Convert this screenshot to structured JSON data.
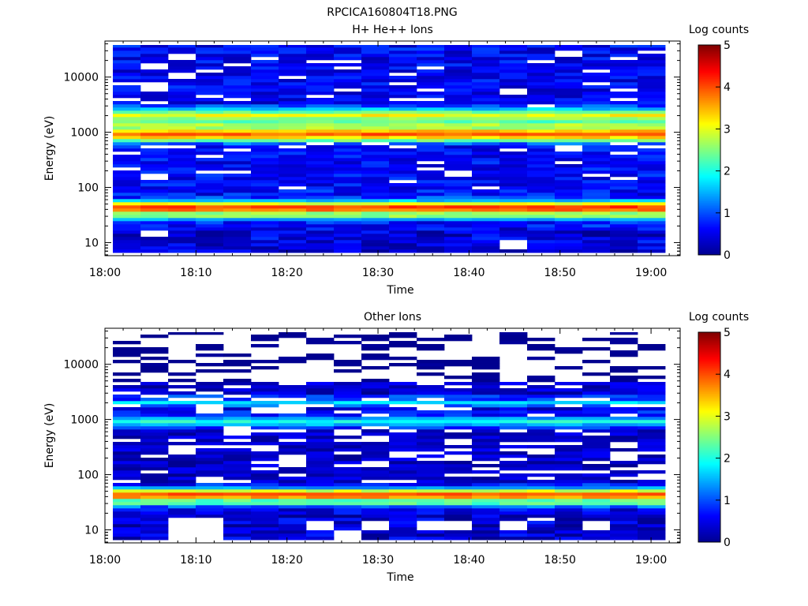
{
  "figure_title": "RPCICA160804T18.PNG",
  "colorbar": {
    "label": "Log counts",
    "ticks": [
      "0",
      "1",
      "2",
      "3",
      "4",
      "5"
    ],
    "range": [
      0,
      5
    ],
    "colormap": [
      "#00008f",
      "#0000ff",
      "#0080ff",
      "#00ffff",
      "#80ff80",
      "#ffff00",
      "#ff8000",
      "#ff0000",
      "#800000"
    ]
  },
  "chart_data": [
    {
      "type": "heatmap",
      "title": "H+ He++ Ions",
      "xlabel": "Time",
      "ylabel": "Energy (eV)",
      "x_tick_labels": [
        "18:00",
        "18:10",
        "18:20",
        "18:30",
        "18:40",
        "18:50",
        "19:00"
      ],
      "x_tick_minutes": [
        0,
        10,
        20,
        30,
        40,
        50,
        60
      ],
      "xlim_minutes": [
        0,
        63.2
      ],
      "y_scale": "log",
      "y_tick_labels": [
        "10",
        "100",
        "1000",
        "10000"
      ],
      "y_tick_values": [
        10,
        100,
        1000,
        10000
      ],
      "ylim": [
        5.8,
        45000
      ],
      "time_bins_minutes": [
        0.3,
        3.5,
        6.8,
        10.0,
        13.2,
        16.5,
        19.7,
        22.9,
        26.2,
        29.4,
        32.6,
        35.9,
        39.1,
        42.3,
        45.6,
        48.8,
        52.0,
        55.3,
        58.5,
        61.8
      ],
      "bands": [
        {
          "energy_ev": [
            5.8,
            7
          ],
          "log_counts": 0.5
        },
        {
          "energy_ev": [
            7,
            9.5
          ],
          "log_counts": 0.4
        },
        {
          "energy_ev": [
            9.5,
            13
          ],
          "log_counts": 0.5
        },
        {
          "energy_ev": [
            13,
            16
          ],
          "log_counts": 0.4
        },
        {
          "energy_ev": [
            16,
            20
          ],
          "log_counts": 0.5
        },
        {
          "energy_ev": [
            20,
            25
          ],
          "log_counts": 0.7
        },
        {
          "energy_ev": [
            25,
            30
          ],
          "log_counts": 1.4
        },
        {
          "energy_ev": [
            30,
            35
          ],
          "log_counts": 2.6
        },
        {
          "energy_ev": [
            35,
            40
          ],
          "log_counts": 3.8
        },
        {
          "energy_ev": [
            40,
            47
          ],
          "log_counts": 4.1
        },
        {
          "energy_ev": [
            47,
            55
          ],
          "log_counts": 3.0
        },
        {
          "energy_ev": [
            55,
            63
          ],
          "log_counts": 1.6
        },
        {
          "energy_ev": [
            63,
            75
          ],
          "log_counts": 0.9
        },
        {
          "energy_ev": [
            75,
            600
          ],
          "log_counts": 0.65
        },
        {
          "energy_ev": [
            600,
            700
          ],
          "log_counts": 1.1
        },
        {
          "energy_ev": [
            700,
            800
          ],
          "log_counts": 2.4
        },
        {
          "energy_ev": [
            800,
            900
          ],
          "log_counts": 3.3
        },
        {
          "energy_ev": [
            900,
            1050
          ],
          "log_counts": 3.9
        },
        {
          "energy_ev": [
            1050,
            1200
          ],
          "log_counts": 3.4
        },
        {
          "energy_ev": [
            1200,
            1400
          ],
          "log_counts": 2.7
        },
        {
          "energy_ev": [
            1400,
            1600
          ],
          "log_counts": 2.3
        },
        {
          "energy_ev": [
            1600,
            1850
          ],
          "log_counts": 2.6
        },
        {
          "energy_ev": [
            1850,
            2150
          ],
          "log_counts": 3.1
        },
        {
          "energy_ev": [
            2150,
            2500
          ],
          "log_counts": 2.4
        },
        {
          "energy_ev": [
            2500,
            2900
          ],
          "log_counts": 1.6
        },
        {
          "energy_ev": [
            2900,
            3400
          ],
          "log_counts": 1.0
        },
        {
          "energy_ev": [
            3400,
            45000
          ],
          "log_counts": 0.6
        }
      ],
      "empty_cells": [
        {
          "time_bin": 1,
          "energy_ev": [
            13,
            16.5
          ]
        },
        {
          "time_bin": 14,
          "energy_ev": [
            7.2,
            10.5
          ]
        }
      ]
    },
    {
      "type": "heatmap",
      "title": "Other Ions",
      "xlabel": "Time",
      "ylabel": "Energy (eV)",
      "x_tick_labels": [
        "18:00",
        "18:10",
        "18:20",
        "18:30",
        "18:40",
        "18:50",
        "19:00"
      ],
      "x_tick_minutes": [
        0,
        10,
        20,
        30,
        40,
        50,
        60
      ],
      "xlim_minutes": [
        0,
        63.2
      ],
      "y_scale": "log",
      "y_tick_labels": [
        "10",
        "100",
        "1000",
        "10000"
      ],
      "y_tick_values": [
        10,
        100,
        1000,
        10000
      ],
      "ylim": [
        5.8,
        45000
      ],
      "time_bins_minutes": [
        0.3,
        3.5,
        6.8,
        10.0,
        13.2,
        16.5,
        19.7,
        22.9,
        26.2,
        29.4,
        32.6,
        35.9,
        39.1,
        42.3,
        45.6,
        48.8,
        52.0,
        55.3,
        58.5,
        61.8
      ],
      "bands": [
        {
          "energy_ev": [
            5.8,
            7
          ],
          "log_counts": 0.3
        },
        {
          "energy_ev": [
            7,
            9.5
          ],
          "log_counts": 0.4
        },
        {
          "energy_ev": [
            9.5,
            13
          ],
          "log_counts": 0.3
        },
        {
          "energy_ev": [
            13,
            16
          ],
          "log_counts": 0.4
        },
        {
          "energy_ev": [
            16,
            20
          ],
          "log_counts": 0.3
        },
        {
          "energy_ev": [
            20,
            25
          ],
          "log_counts": 0.5
        },
        {
          "energy_ev": [
            25,
            30
          ],
          "log_counts": 1.1
        },
        {
          "energy_ev": [
            30,
            35
          ],
          "log_counts": 2.3
        },
        {
          "energy_ev": [
            35,
            40
          ],
          "log_counts": 3.6
        },
        {
          "energy_ev": [
            40,
            47
          ],
          "log_counts": 3.9
        },
        {
          "energy_ev": [
            47,
            55
          ],
          "log_counts": 2.9
        },
        {
          "energy_ev": [
            55,
            63
          ],
          "log_counts": 1.4
        },
        {
          "energy_ev": [
            63,
            75
          ],
          "log_counts": 0.7
        },
        {
          "energy_ev": [
            75,
            700
          ],
          "log_counts": 0.4
        },
        {
          "energy_ev": [
            700,
            800
          ],
          "log_counts": 0.9
        },
        {
          "energy_ev": [
            800,
            900
          ],
          "log_counts": 1.5
        },
        {
          "energy_ev": [
            900,
            1050
          ],
          "log_counts": 2.0
        },
        {
          "energy_ev": [
            1050,
            1200
          ],
          "log_counts": 1.4
        },
        {
          "energy_ev": [
            1200,
            1400
          ],
          "log_counts": 0.8
        },
        {
          "energy_ev": [
            1400,
            1700
          ],
          "log_counts": 0.5
        },
        {
          "energy_ev": [
            1700,
            1950
          ],
          "log_counts": 1.2
        },
        {
          "energy_ev": [
            1950,
            2300
          ],
          "log_counts": 1.7
        },
        {
          "energy_ev": [
            2300,
            2700
          ],
          "log_counts": 1.0
        },
        {
          "energy_ev": [
            2700,
            4500
          ],
          "log_counts": 0.4
        },
        {
          "energy_ev": [
            4500,
            45000
          ],
          "log_counts": 0.2
        }
      ],
      "empty_cells": [
        {
          "time_bin": 2,
          "energy_ev": [
            5.8,
            16
          ]
        },
        {
          "time_bin": 3,
          "energy_ev": [
            5.8,
            16
          ]
        },
        {
          "time_bin": 7,
          "energy_ev": [
            10,
            14
          ]
        },
        {
          "time_bin": 8,
          "energy_ev": [
            5.8,
            10
          ]
        },
        {
          "time_bin": 9,
          "energy_ev": [
            10,
            14
          ]
        },
        {
          "time_bin": 11,
          "energy_ev": [
            10,
            14
          ]
        },
        {
          "time_bin": 12,
          "energy_ev": [
            10,
            14
          ]
        },
        {
          "time_bin": 14,
          "energy_ev": [
            10,
            14
          ]
        },
        {
          "time_bin": 15,
          "energy_ev": [
            14,
            17
          ]
        },
        {
          "time_bin": 17,
          "energy_ev": [
            10,
            14
          ]
        }
      ]
    }
  ]
}
